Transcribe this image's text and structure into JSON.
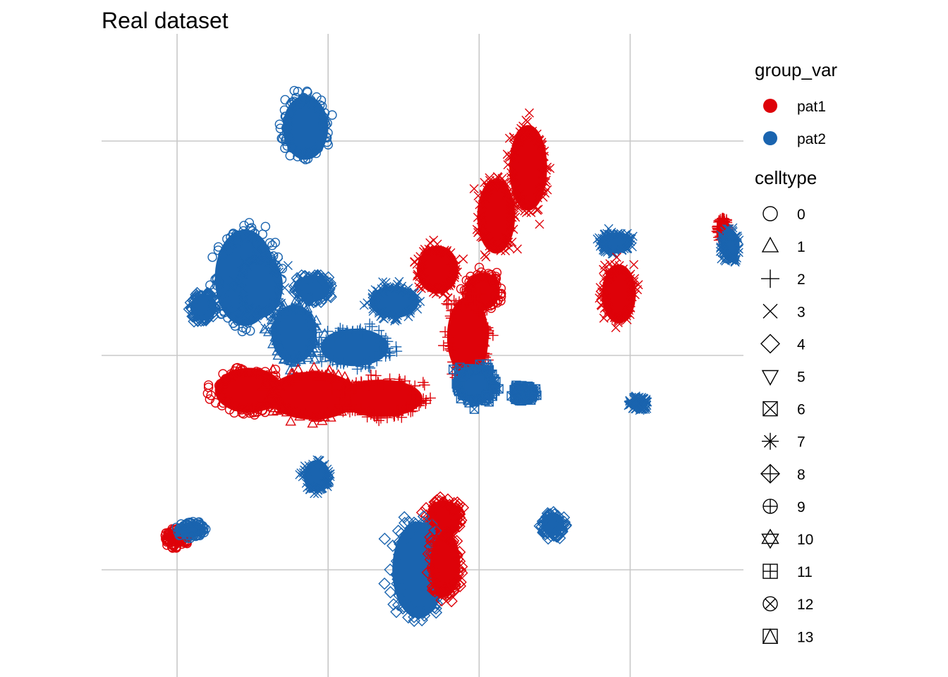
{
  "chart_data": {
    "type": "scatter",
    "title": "Real dataset",
    "xlabel": "",
    "ylabel": "",
    "grid": true,
    "axis_ticks_labeled": false,
    "legend_position": "right",
    "colors": {
      "pat1": "#de0209",
      "pat2": "#1a64af"
    },
    "legend_group": {
      "title": "group_var",
      "entries": [
        "pat1",
        "pat2"
      ]
    },
    "legend_shape": {
      "title": "celltype",
      "entries": [
        {
          "label": "0",
          "shape": "circle-open"
        },
        {
          "label": "1",
          "shape": "triangle-open"
        },
        {
          "label": "2",
          "shape": "plus"
        },
        {
          "label": "3",
          "shape": "cross"
        },
        {
          "label": "4",
          "shape": "diamond-open"
        },
        {
          "label": "5",
          "shape": "triangle-down-open"
        },
        {
          "label": "6",
          "shape": "square-cross"
        },
        {
          "label": "7",
          "shape": "asterisk"
        },
        {
          "label": "8",
          "shape": "diamond-plus"
        },
        {
          "label": "9",
          "shape": "circle-plus"
        },
        {
          "label": "10",
          "shape": "star-of-david"
        },
        {
          "label": "11",
          "shape": "square-plus"
        },
        {
          "label": "12",
          "shape": "circle-cross"
        },
        {
          "label": "13",
          "shape": "square-triangle"
        }
      ]
    },
    "clusters": [
      {
        "group": "pat2",
        "celltype": "4",
        "center": [
          -1.3,
          0.9
        ],
        "spread": [
          0.35,
          0.25
        ]
      },
      {
        "group": "pat2",
        "celltype": "0",
        "center": [
          -0.2,
          1.45
        ],
        "spread": [
          0.8,
          0.9
        ]
      },
      {
        "group": "pat2",
        "celltype": "3",
        "center": [
          0.2,
          1.3
        ],
        "spread": [
          0.6,
          0.6
        ]
      },
      {
        "group": "pat2",
        "celltype": "1",
        "center": [
          1.1,
          0.4
        ],
        "spread": [
          0.6,
          0.55
        ]
      },
      {
        "group": "pat2",
        "celltype": "4",
        "center": [
          1.6,
          1.25
        ],
        "spread": [
          0.45,
          0.25
        ]
      },
      {
        "group": "pat1",
        "celltype": "3",
        "center": [
          4.9,
          1.6
        ],
        "spread": [
          0.55,
          0.45
        ]
      },
      {
        "group": "pat1",
        "celltype": "3",
        "center": [
          6.45,
          2.6
        ],
        "spread": [
          0.5,
          0.7
        ]
      },
      {
        "group": "pat1",
        "celltype": "0",
        "center": [
          6.1,
          1.2
        ],
        "spread": [
          0.45,
          0.35
        ]
      },
      {
        "group": "pat1",
        "celltype": "3",
        "center": [
          7.3,
          3.5
        ],
        "spread": [
          0.5,
          0.8
        ]
      },
      {
        "group": "pat1",
        "celltype": "2",
        "center": [
          5.7,
          0.35
        ],
        "spread": [
          0.55,
          0.75
        ]
      },
      {
        "group": "pat2",
        "celltype": "3",
        "center": [
          9.6,
          2.1
        ],
        "spread": [
          0.45,
          0.2
        ]
      },
      {
        "group": "pat1",
        "celltype": "3",
        "center": [
          9.7,
          1.15
        ],
        "spread": [
          0.45,
          0.55
        ]
      },
      {
        "group": "pat1",
        "celltype": "2",
        "center": [
          12.45,
          2.35
        ],
        "spread": [
          0.15,
          0.2
        ]
      },
      {
        "group": "pat2",
        "celltype": "3",
        "center": [
          12.65,
          2.05
        ],
        "spread": [
          0.25,
          0.3
        ]
      },
      {
        "group": "pat2",
        "celltype": "3",
        "center": [
          10.2,
          -0.9
        ],
        "spread": [
          0.25,
          0.12
        ]
      },
      {
        "group": "pat2",
        "celltype": "0",
        "center": [
          1.4,
          4.25
        ],
        "spread": [
          0.6,
          0.6
        ]
      },
      {
        "group": "pat2",
        "celltype": "2",
        "center": [
          2.7,
          0.15
        ],
        "spread": [
          0.9,
          0.35
        ]
      },
      {
        "group": "pat2",
        "celltype": "3",
        "center": [
          3.75,
          1.0
        ],
        "spread": [
          0.65,
          0.3
        ]
      },
      {
        "group": "pat1",
        "celltype": "0",
        "center": [
          -0.1,
          -0.65
        ],
        "spread": [
          0.9,
          0.42
        ]
      },
      {
        "group": "pat1",
        "celltype": "1",
        "center": [
          1.6,
          -0.75
        ],
        "spread": [
          1.2,
          0.45
        ]
      },
      {
        "group": "pat1",
        "celltype": "2",
        "center": [
          3.4,
          -0.8
        ],
        "spread": [
          1.1,
          0.35
        ]
      },
      {
        "group": "pat2",
        "celltype": "6",
        "center": [
          5.9,
          -0.55
        ],
        "spread": [
          0.55,
          0.35
        ]
      },
      {
        "group": "pat2",
        "celltype": "6",
        "center": [
          7.15,
          -0.7
        ],
        "spread": [
          0.3,
          0.15
        ]
      },
      {
        "group": "pat2",
        "celltype": "3",
        "center": [
          1.7,
          -2.25
        ],
        "spread": [
          0.35,
          0.3
        ]
      },
      {
        "group": "pat1",
        "celltype": "0",
        "center": [
          -2.0,
          -3.4
        ],
        "spread": [
          0.3,
          0.18
        ]
      },
      {
        "group": "pat2",
        "celltype": "0",
        "center": [
          -1.6,
          -3.25
        ],
        "spread": [
          0.35,
          0.15
        ]
      },
      {
        "group": "pat1",
        "celltype": "4",
        "center": [
          5.05,
          -3.05
        ],
        "spread": [
          0.45,
          0.35
        ]
      },
      {
        "group": "pat2",
        "celltype": "4",
        "center": [
          4.4,
          -4.0
        ],
        "spread": [
          0.7,
          0.9
        ]
      },
      {
        "group": "pat1",
        "celltype": "4",
        "center": [
          5.1,
          -3.9
        ],
        "spread": [
          0.4,
          0.6
        ]
      },
      {
        "group": "pat2",
        "celltype": "4",
        "center": [
          7.95,
          -3.15
        ],
        "spread": [
          0.3,
          0.22
        ]
      }
    ],
    "x_range": [
      -4,
      13
    ],
    "y_range": [
      -6,
      6
    ],
    "grid_x": [
      -2,
      2,
      6,
      10
    ],
    "grid_y": [
      4,
      0,
      -4,
      -8
    ]
  }
}
